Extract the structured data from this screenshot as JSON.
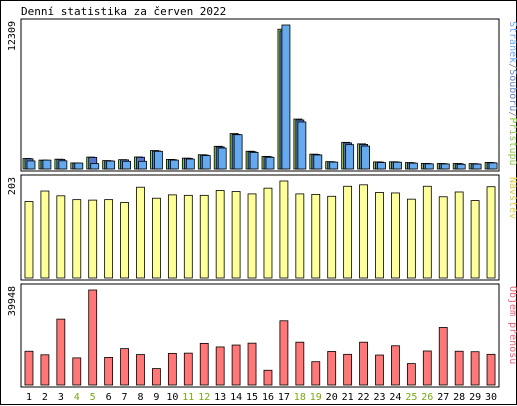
{
  "chart_data": {
    "type": "bar",
    "title": "Denní statistika za červen 2022",
    "categories": [
      "1",
      "2",
      "3",
      "4",
      "5",
      "6",
      "7",
      "8",
      "9",
      "10",
      "11",
      "12",
      "13",
      "14",
      "15",
      "16",
      "17",
      "18",
      "19",
      "20",
      "21",
      "22",
      "23",
      "24",
      "25",
      "26",
      "27",
      "28",
      "29",
      "30"
    ],
    "weekend_days": [
      "4",
      "5",
      "11",
      "12",
      "18",
      "19",
      "25",
      "26"
    ],
    "panels": [
      {
        "id": "hits",
        "max_label": "12309",
        "ymax": 12309,
        "legend": [
          {
            "text": "Stránek",
            "color": "#66aaff"
          },
          {
            "text": "/",
            "color": "#888888"
          },
          {
            "text": "Souborů",
            "color": "#6688cc"
          },
          {
            "text": "/",
            "color": "#888888"
          },
          {
            "text": "Přístupů",
            "color": "#88cc44"
          }
        ],
        "series": [
          {
            "name": "Přístupů",
            "color": "#88cc55",
            "values": [
              900,
              760,
              840,
              520,
              1020,
              720,
              800,
              1030,
              1580,
              820,
              930,
              1220,
              1940,
              3030,
              1520,
              1080,
              11950,
              4270,
              1270,
              630,
              2280,
              2150,
              610,
              620,
              550,
              480,
              470,
              470,
              460,
              560
            ]
          },
          {
            "name": "Souborů",
            "color": "#5577cc",
            "values": [
              870,
              740,
              820,
              500,
              990,
              700,
              780,
              1000,
              1540,
              800,
              910,
              1190,
              1890,
              2960,
              1480,
              1050,
              11800,
              4190,
              1240,
              610,
              2230,
              2100,
              590,
              600,
              530,
              460,
              450,
              450,
              440,
              540
            ]
          },
          {
            "name": "Stránek",
            "color": "#66aaee",
            "values": [
              690,
              760,
              700,
              510,
              460,
              680,
              660,
              660,
              1510,
              760,
              850,
              1150,
              1790,
              2930,
              1420,
              1000,
              12309,
              4020,
              1200,
              590,
              2080,
              1960,
              550,
              580,
              500,
              440,
              430,
              400,
              420,
              520
            ]
          }
        ]
      },
      {
        "id": "visits",
        "max_label": "203",
        "ymax": 203,
        "legend": [
          {
            "text": "Návštěv",
            "color": "#ddcc44"
          }
        ],
        "series": [
          {
            "name": "Návštěv",
            "color": "#ffff99",
            "values": [
              160,
              182,
              172,
              164,
              163,
              164,
              158,
              190,
              167,
              174,
              173,
              173,
              183,
              181,
              176,
              188,
              203,
              176,
              175,
              171,
              192,
              195,
              179,
              178,
              165,
              192,
              170,
              180,
              162,
              191
            ]
          }
        ]
      },
      {
        "id": "kbytes",
        "max_label": "39948",
        "ymax": 39948,
        "legend": [
          {
            "text": "Objem přenosu",
            "color": "#ee6677"
          }
        ],
        "series": [
          {
            "name": "Objem přenosu",
            "color": "#ff7777",
            "values": [
              14200,
              12700,
              27700,
              11400,
              39948,
              11600,
              15300,
              12800,
              6900,
              13300,
              13400,
              17500,
              16000,
              16800,
              17600,
              6200,
              27000,
              18000,
              9800,
              14100,
              12900,
              18000,
              12600,
              16500,
              9000,
              14300,
              24200,
              14200,
              14000,
              12900
            ]
          }
        ]
      }
    ]
  }
}
